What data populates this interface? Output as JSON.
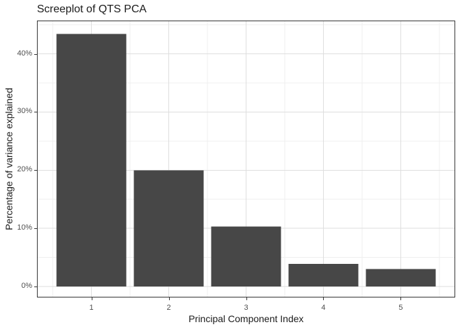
{
  "chart_data": {
    "type": "bar",
    "title": "Screeplot of QTS PCA",
    "xlabel": "Principal Component Index",
    "ylabel": "Percentage of variance explained",
    "categories": [
      1,
      2,
      3,
      4,
      5
    ],
    "values": [
      43.4,
      20.0,
      10.3,
      3.9,
      3.0
    ],
    "unit": "%",
    "bar_width": 0.9,
    "xlim": [
      0.305,
      5.695
    ],
    "ylim": [
      -1.76,
      45.6
    ],
    "x_major_ticks": [
      1,
      2,
      3,
      4,
      5
    ],
    "x_minor_ticks": [
      0.5,
      1.5,
      2.5,
      3.5,
      4.5,
      5.5
    ],
    "y_major_ticks": [
      0,
      10,
      20,
      30,
      40
    ],
    "y_minor_ticks": [
      5,
      15,
      25,
      35,
      45
    ],
    "x_tick_labels": [
      "1",
      "2",
      "3",
      "4",
      "5"
    ],
    "y_tick_labels": [
      "0%",
      "10%",
      "20%",
      "30%",
      "40%"
    ],
    "grid": true,
    "legend": "none",
    "colors": {
      "bar_fill": "#474747",
      "panel_border": "#333333",
      "grid_major": "#dedede",
      "grid_minor": "#efefef",
      "tick_mark": "#333333",
      "tick_label": "#4d4d4d",
      "title_text": "#1a1a1a",
      "axis_title_text": "#1a1a1a",
      "background": "#ffffff"
    }
  }
}
